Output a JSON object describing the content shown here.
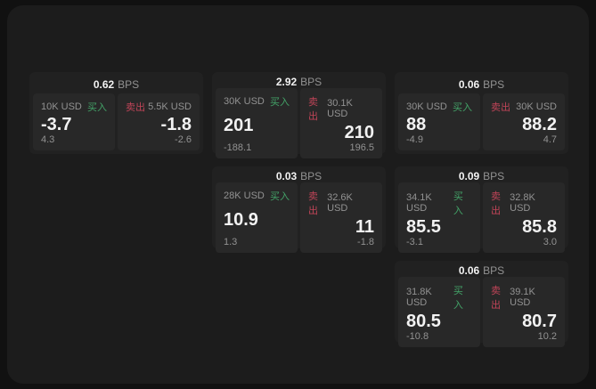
{
  "labels": {
    "bps": "BPS",
    "buy": "买入",
    "sell": "卖出"
  },
  "colors": {
    "page_bg": "#111111",
    "window_bg": "#1c1c1c",
    "card_bg": "#212121",
    "panel_bg": "#282828",
    "buy": "#43a368",
    "sell": "#c04458",
    "text_main": "#f2f2f2",
    "text_dim": "#929292"
  },
  "cards": [
    {
      "bps": "0.62",
      "buy": {
        "size": "10K USD",
        "value": "-3.7",
        "sub": "4.3"
      },
      "sell": {
        "size": "5.5K USD",
        "value": "-1.8",
        "sub": "-2.6"
      }
    },
    {
      "bps": "2.92",
      "buy": {
        "size": "30K USD",
        "value": "201",
        "sub": "-188.1"
      },
      "sell": {
        "size": "30.1K USD",
        "value": "210",
        "sub": "196.5"
      }
    },
    {
      "bps": "0.06",
      "buy": {
        "size": "30K USD",
        "value": "88",
        "sub": "-4.9"
      },
      "sell": {
        "size": "30K USD",
        "value": "88.2",
        "sub": "4.7"
      }
    },
    {
      "bps": "0.03",
      "buy": {
        "size": "28K USD",
        "value": "10.9",
        "sub": "1.3"
      },
      "sell": {
        "size": "32.6K USD",
        "value": "11",
        "sub": "-1.8"
      }
    },
    {
      "bps": "0.09",
      "buy": {
        "size": "34.1K USD",
        "value": "85.5",
        "sub": "-3.1"
      },
      "sell": {
        "size": "32.8K USD",
        "value": "85.8",
        "sub": "3.0"
      }
    },
    {
      "bps": "0.06",
      "buy": {
        "size": "31.8K USD",
        "value": "80.5",
        "sub": "-10.8"
      },
      "sell": {
        "size": "39.1K USD",
        "value": "80.7",
        "sub": "10.2"
      }
    }
  ]
}
